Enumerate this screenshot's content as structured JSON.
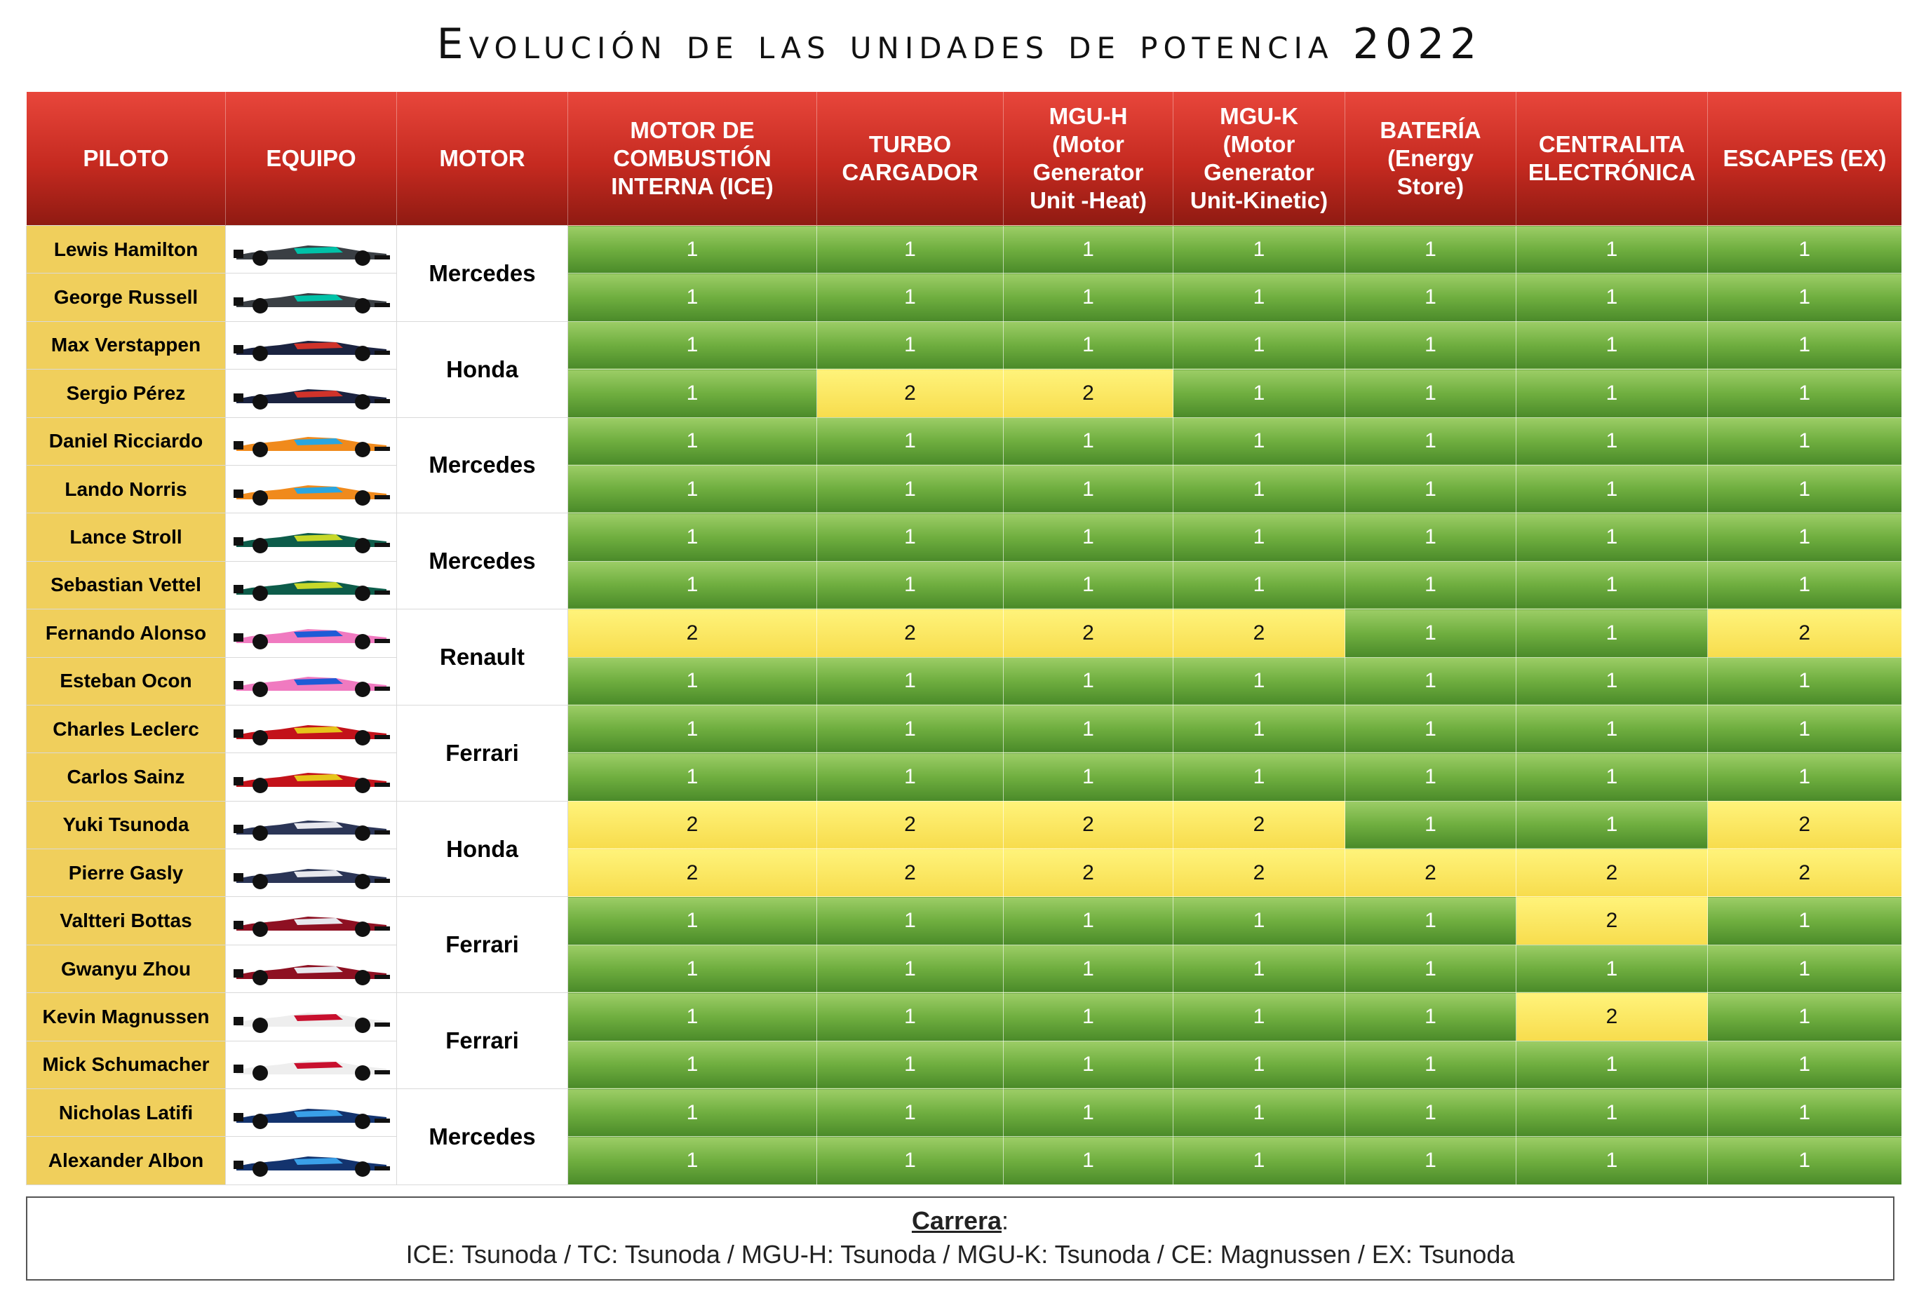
{
  "title": "Evolución de las unidades de potencia 2022",
  "table": {
    "headers": [
      "PILOTO",
      "EQUIPO",
      "MOTOR",
      "MOTOR DE\nCOMBUSTIÓN\nINTERNA (ICE)",
      "TURBO\nCARGADOR",
      "MGU-H\n(Motor\nGenerator\nUnit -Heat)",
      "MGU-K\n(Motor\nGenerator\nUnit-Kinetic)",
      "BATERÍA\n(Energy\nStore)",
      "CENTRALITA\nELECTRÓNICA",
      "ESCAPES (EX)"
    ],
    "teams": [
      {
        "motor": "Mercedes",
        "drivers": [
          {
            "name": "Lewis Hamilton",
            "values": [
              1,
              1,
              1,
              1,
              1,
              1,
              1
            ]
          },
          {
            "name": "George Russell",
            "values": [
              1,
              1,
              1,
              1,
              1,
              1,
              1
            ]
          }
        ]
      },
      {
        "motor": "Honda",
        "drivers": [
          {
            "name": "Max Verstappen",
            "values": [
              1,
              1,
              1,
              1,
              1,
              1,
              1
            ]
          },
          {
            "name": "Sergio Pérez",
            "values": [
              1,
              2,
              2,
              1,
              1,
              1,
              1
            ]
          }
        ]
      },
      {
        "motor": "Mercedes",
        "drivers": [
          {
            "name": "Daniel Ricciardo",
            "values": [
              1,
              1,
              1,
              1,
              1,
              1,
              1
            ]
          },
          {
            "name": "Lando Norris",
            "values": [
              1,
              1,
              1,
              1,
              1,
              1,
              1
            ]
          }
        ]
      },
      {
        "motor": "Mercedes",
        "drivers": [
          {
            "name": "Lance Stroll",
            "values": [
              1,
              1,
              1,
              1,
              1,
              1,
              1
            ]
          },
          {
            "name": "Sebastian Vettel",
            "values": [
              1,
              1,
              1,
              1,
              1,
              1,
              1
            ]
          }
        ]
      },
      {
        "motor": "Renault",
        "drivers": [
          {
            "name": "Fernando Alonso",
            "values": [
              2,
              2,
              2,
              2,
              1,
              1,
              2
            ]
          },
          {
            "name": "Esteban Ocon",
            "values": [
              1,
              1,
              1,
              1,
              1,
              1,
              1
            ]
          }
        ]
      },
      {
        "motor": "Ferrari",
        "drivers": [
          {
            "name": "Charles Leclerc",
            "values": [
              1,
              1,
              1,
              1,
              1,
              1,
              1
            ]
          },
          {
            "name": "Carlos Sainz",
            "values": [
              1,
              1,
              1,
              1,
              1,
              1,
              1
            ]
          }
        ]
      },
      {
        "motor": "Honda",
        "drivers": [
          {
            "name": "Yuki Tsunoda",
            "values": [
              2,
              2,
              2,
              2,
              1,
              1,
              2
            ]
          },
          {
            "name": "Pierre Gasly",
            "values": [
              2,
              2,
              2,
              2,
              2,
              2,
              2
            ]
          }
        ]
      },
      {
        "motor": "Ferrari",
        "drivers": [
          {
            "name": "Valtteri Bottas",
            "values": [
              1,
              1,
              1,
              1,
              1,
              2,
              1
            ]
          },
          {
            "name": "Gwanyu Zhou",
            "values": [
              1,
              1,
              1,
              1,
              1,
              1,
              1
            ]
          }
        ]
      },
      {
        "motor": "Ferrari",
        "drivers": [
          {
            "name": "Kevin Magnussen",
            "values": [
              1,
              1,
              1,
              1,
              1,
              2,
              1
            ]
          },
          {
            "name": "Mick Schumacher",
            "values": [
              1,
              1,
              1,
              1,
              1,
              1,
              1
            ]
          }
        ]
      },
      {
        "motor": "Mercedes",
        "drivers": [
          {
            "name": "Nicholas Latifi",
            "values": [
              1,
              1,
              1,
              1,
              1,
              1,
              1
            ]
          },
          {
            "name": "Alexander Albon",
            "values": [
              1,
              1,
              1,
              1,
              1,
              1,
              1
            ]
          }
        ]
      }
    ]
  },
  "footer": {
    "label": "Carrera",
    "colon": ":",
    "text": "ICE: Tsunoda / TC: Tsunoda / MGU-H: Tsunoda / MGU-K: Tsunoda / CE: Magnussen / EX: Tsunoda"
  }
}
